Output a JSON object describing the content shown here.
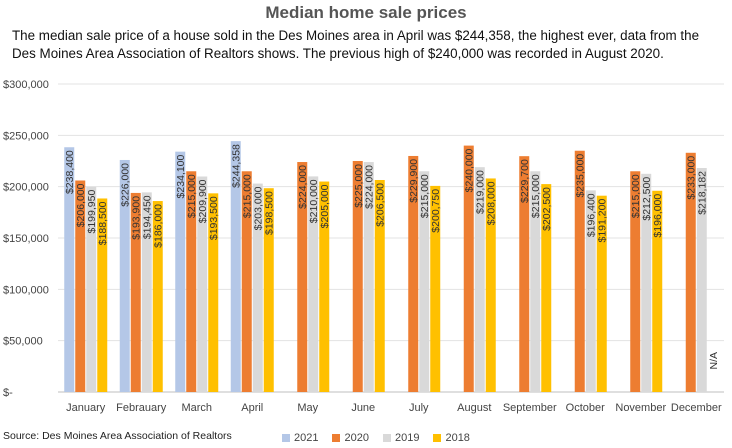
{
  "title": "Median home sale prices",
  "subtitle": "The median sale price of a house sold in the Des Moines area in April was $244,358, the highest ever,  data from the Des Moines Area Association of Realtors shows. The previous high of $240,000 was recorded in August 2020.",
  "source": "Source: Des Moines Area Association of Realtors",
  "colors": {
    "2021": "#b4c7e7",
    "2020": "#ed7d31",
    "2019": "#d9d9d9",
    "2018": "#ffc000"
  },
  "chart_data": {
    "type": "bar",
    "categories": [
      "January",
      "Febrauary",
      "March",
      "April",
      "May",
      "June",
      "July",
      "August",
      "September",
      "October",
      "November",
      "December"
    ],
    "series": [
      {
        "name": "2021",
        "values": [
          238400,
          226000,
          234100,
          244358,
          null,
          null,
          null,
          null,
          null,
          null,
          null,
          null
        ],
        "labels": [
          "$238,400",
          "$226,000",
          "$234,100",
          "$244,358",
          "",
          "",
          "",
          "",
          "",
          "",
          "",
          ""
        ]
      },
      {
        "name": "2020",
        "values": [
          206000,
          193900,
          215000,
          215000,
          224000,
          225000,
          229900,
          240000,
          229700,
          235000,
          215000,
          233000
        ],
        "labels": [
          "$206,000",
          "$193,900",
          "$215,000",
          "$215,000",
          "$224,000",
          "$225,000",
          "$229,900",
          "$240,000",
          "$229,700",
          "$235,000",
          "$215,000",
          "$233,000"
        ]
      },
      {
        "name": "2019",
        "values": [
          199950,
          194450,
          209900,
          203000,
          210000,
          224000,
          215000,
          219000,
          215000,
          196400,
          212500,
          218182
        ],
        "labels": [
          "$199,950",
          "$194,450",
          "$209,900",
          "$203,000",
          "$210,000",
          "$224,000",
          "$215,000",
          "$219,000",
          "$215,000",
          "$196,400",
          "$212,500",
          "$218,182"
        ]
      },
      {
        "name": "2018",
        "values": [
          188500,
          186000,
          193500,
          198500,
          205000,
          206500,
          200750,
          208000,
          202500,
          191200,
          196000,
          null
        ],
        "labels": [
          "$188,500",
          "$186,000",
          "$193,500",
          "$198,500",
          "$205,000",
          "$206,500",
          "$200,750",
          "$208,000",
          "$202,500",
          "$191,200",
          "$196,000",
          "N/A"
        ]
      }
    ],
    "yticks": [
      "$300,000",
      "$250,000",
      "$200,000",
      "$150,000",
      "$100,000",
      "$50,000",
      "$-"
    ],
    "ylim": [
      0,
      300000
    ],
    "grid": true,
    "legend": "bottom"
  }
}
